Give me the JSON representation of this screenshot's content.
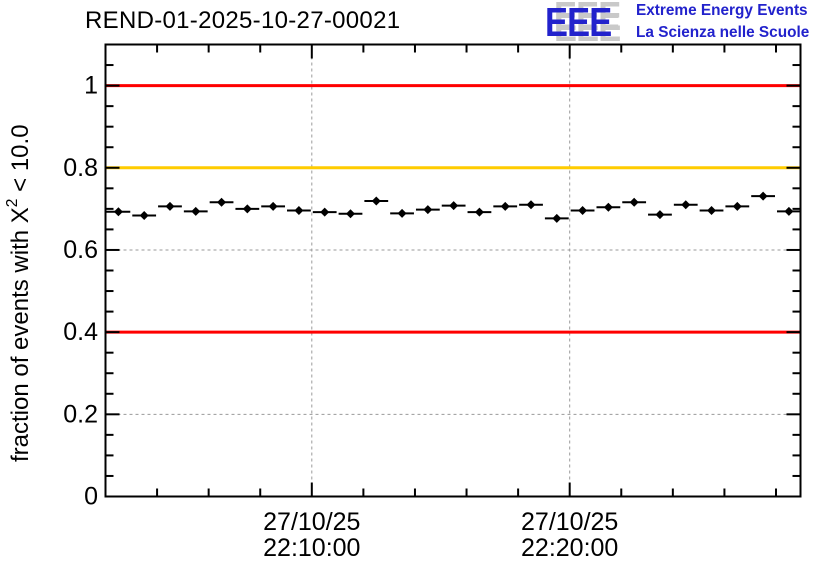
{
  "title": "REND-01-2025-10-27-00021",
  "logo": {
    "acronym": "EEE",
    "line1": "Extreme Energy Events",
    "line2": "La Scienza nelle Scuole",
    "blue": "#2222cc",
    "shadow_gray": "#c9c9c9"
  },
  "y_axis_title": {
    "prefix": "fraction of events with X",
    "sup": "2",
    "suffix": " < 10.0",
    "full": "fraction of events with X² < 10.0"
  },
  "chart_data": {
    "type": "scatter",
    "title": "REND-01-2025-10-27-00021",
    "ylabel": "fraction of events with X² < 10.0",
    "xlabel": "",
    "date": "27/10/25",
    "x_minutes": [
      2.5,
      3.5,
      4.5,
      5.5,
      6.5,
      7.5,
      8.5,
      9.5,
      10.5,
      11.5,
      12.5,
      13.5,
      14.5,
      15.5,
      16.5,
      17.5,
      18.5,
      19.5,
      20.5,
      21.5,
      22.5,
      23.5,
      24.5,
      25.5,
      26.5,
      27.5,
      28.5
    ],
    "x_times": [
      "22:02:30",
      "22:03:30",
      "22:04:30",
      "22:05:30",
      "22:06:30",
      "22:07:30",
      "22:08:30",
      "22:09:30",
      "22:10:30",
      "22:11:30",
      "22:12:30",
      "22:13:30",
      "22:14:30",
      "22:15:30",
      "22:16:30",
      "22:17:30",
      "22:18:30",
      "22:19:30",
      "22:20:30",
      "22:21:30",
      "22:22:30",
      "22:23:30",
      "22:24:30",
      "22:25:30",
      "22:26:30",
      "22:27:30",
      "22:28:30"
    ],
    "values": [
      0.693,
      0.684,
      0.706,
      0.694,
      0.716,
      0.7,
      0.706,
      0.696,
      0.692,
      0.688,
      0.719,
      0.689,
      0.698,
      0.708,
      0.692,
      0.706,
      0.71,
      0.677,
      0.696,
      0.704,
      0.716,
      0.686,
      0.71,
      0.696,
      0.706,
      0.731,
      0.694
    ],
    "bin_width_minutes": 1,
    "xlim_minutes": [
      2.0,
      28.95
    ],
    "ylim": [
      0,
      1.1
    ],
    "x_major_ticks": [
      {
        "minute": 10,
        "lines": [
          "27/10/25",
          "22:10:00"
        ]
      },
      {
        "minute": 20,
        "lines": [
          "27/10/25",
          "22:20:00"
        ]
      }
    ],
    "x_minor_step_minutes": 2,
    "y_major_ticks": [
      {
        "value": 0,
        "label": "0"
      },
      {
        "value": 0.2,
        "label": "0.2"
      },
      {
        "value": 0.4,
        "label": "0.4"
      },
      {
        "value": 0.6,
        "label": "0.6"
      },
      {
        "value": 0.8,
        "label": "0.8"
      },
      {
        "value": 1,
        "label": "1"
      }
    ],
    "y_minor_step": 0.05,
    "grid": {
      "show": true,
      "color": "#9a9a9a",
      "dash": "3 3"
    },
    "reference_lines": [
      {
        "value": 1.0,
        "color": "#ff0000"
      },
      {
        "value": 0.8,
        "color": "#ffcc00"
      },
      {
        "value": 0.4,
        "color": "#ff0000"
      }
    ],
    "marker": {
      "shape": "diamond",
      "color": "#000000",
      "size": 9
    },
    "error_bar_color": "#000000",
    "legend_position": "none"
  }
}
